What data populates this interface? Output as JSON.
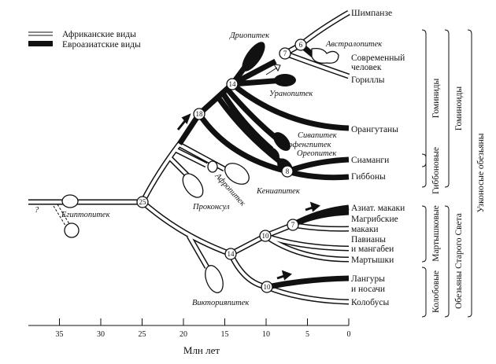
{
  "legend": {
    "african": "Африканские виды",
    "eurasian": "Евроазиатские виды"
  },
  "extant": {
    "chimp": "Шимпанзе",
    "human_1": "Современный",
    "human_2": "человек",
    "gorilla": "Гориллы",
    "orangutan": "Орангутаны",
    "siamang": "Сиаманги",
    "gibbon": "Гиббоны",
    "asian_macaque": "Азиат. макаки",
    "barbary_1": "Магрибские",
    "barbary_2": "макаки",
    "baboon_1": "Павианы",
    "baboon_2": "и мангабеи",
    "guenon": "Мартышки",
    "langur_1": "Лангуры",
    "langur_2": "и носачи",
    "colobus": "Колобусы"
  },
  "fossils": {
    "dryopithecus": "Дриопитек",
    "australopithecus": "Австралопитек",
    "ouranopithecus": "Уранопитек",
    "sivapithecus": "Сивапитек",
    "lufengpithecus": "Люфенгпитек",
    "oreopithecus": "Ореопитек",
    "afropithecus": "Афропитек",
    "kenyapithecus": "Кениапитек",
    "proconsul": "Проконсул",
    "aegyptopithecus": "Египтопитек",
    "victoriapithecus": "Викторияпитек",
    "question": "?"
  },
  "nodes": {
    "n25": "25",
    "n18": "18",
    "n14a": "14",
    "n7a": "7",
    "n6": "6",
    "n8": "8",
    "n14b": "14",
    "n10a": "10",
    "n7b": "7",
    "n10b": "10"
  },
  "groups": {
    "hominids": "Гоминиды",
    "hylobatids": "Гиббоновые",
    "cercopithecines": "Мартышковые",
    "colobines": "Колобовые",
    "hominoids": "Гоминоиды",
    "old_world_monkeys": "Обезьяны Старого Света",
    "catarrhines": "Узконосые обезьяны"
  },
  "axis": {
    "label": "Млн лет",
    "ticks": [
      "35",
      "30",
      "25",
      "20",
      "15",
      "10",
      "5",
      "0"
    ]
  }
}
